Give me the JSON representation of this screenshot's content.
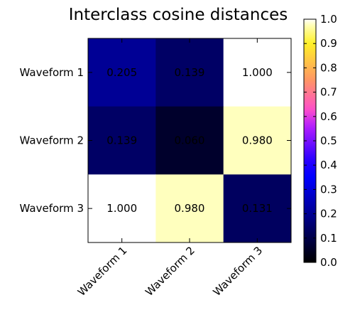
{
  "chart_data": {
    "type": "heatmap",
    "title": "Interclass cosine distances",
    "xlabel": "",
    "ylabel": "",
    "rows": [
      "Waveform 1",
      "Waveform 2",
      "Waveform 3"
    ],
    "columns": [
      "Waveform 1",
      "Waveform 2",
      "Waveform 3"
    ],
    "values": [
      [
        0.205,
        0.139,
        1.0
      ],
      [
        0.139,
        0.06,
        0.98
      ],
      [
        1.0,
        0.98,
        0.131
      ]
    ],
    "value_labels": [
      [
        "0.205",
        "0.139",
        "1.000"
      ],
      [
        "0.139",
        "0.060",
        "0.980"
      ],
      [
        "1.000",
        "0.980",
        "0.131"
      ]
    ],
    "colormap": "gnuplot2",
    "vmin": 0.0,
    "vmax": 1.0,
    "colorbar_ticks": [
      0.0,
      0.1,
      0.2,
      0.3,
      0.4,
      0.5,
      0.6,
      0.7,
      0.8,
      0.9,
      1.0
    ],
    "colorbar_tick_labels": [
      "0.0",
      "0.1",
      "0.2",
      "0.3",
      "0.4",
      "0.5",
      "0.6",
      "0.7",
      "0.8",
      "0.9",
      "1.0"
    ],
    "grid": false,
    "colorbar_placement": "right"
  }
}
